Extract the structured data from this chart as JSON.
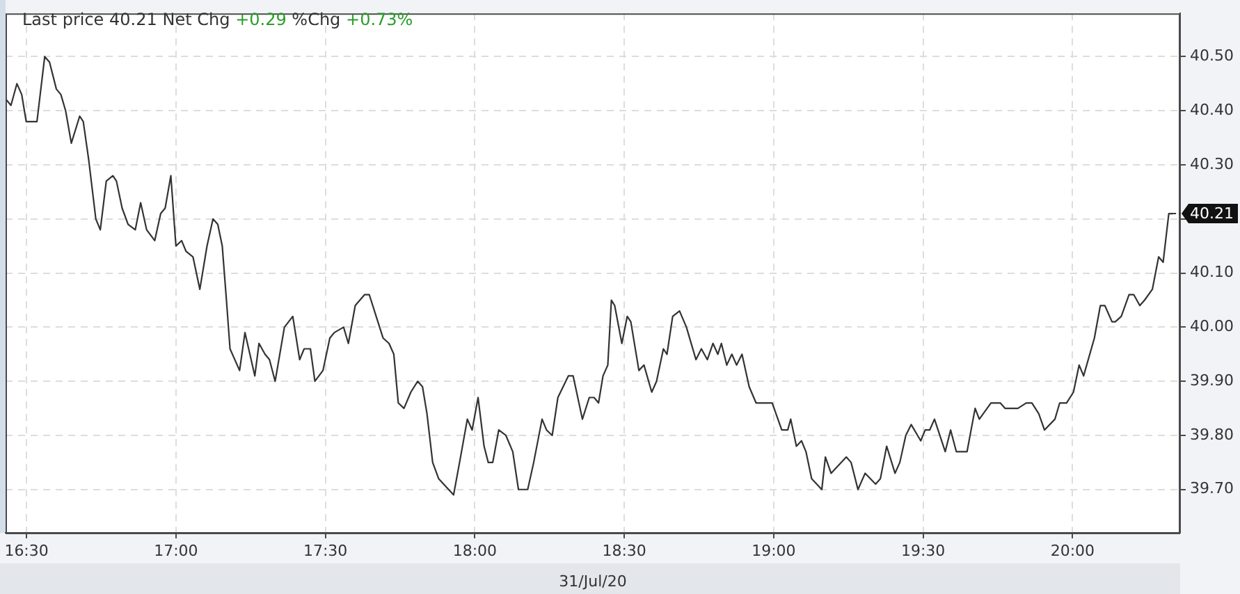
{
  "chart_data": {
    "type": "line",
    "title": "Last price 40.21 Net Chg +0.29 %Chg +0.73%",
    "xlabel": "31/Jul/20",
    "x": [
      16.433,
      16.448,
      16.468,
      16.484,
      16.499,
      16.535,
      16.561,
      16.577,
      16.6,
      16.615,
      16.631,
      16.65,
      16.678,
      16.69,
      16.708,
      16.732,
      16.747,
      16.767,
      16.789,
      16.801,
      16.82,
      16.84,
      16.864,
      16.882,
      16.902,
      16.929,
      16.949,
      16.964,
      16.983,
      17.0,
      17.019,
      17.034,
      17.057,
      17.08,
      17.104,
      17.124,
      17.14,
      17.155,
      17.169,
      17.181,
      17.213,
      17.231,
      17.264,
      17.278,
      17.298,
      17.313,
      17.332,
      17.363,
      17.391,
      17.414,
      17.429,
      17.45,
      17.465,
      17.492,
      17.515,
      17.53,
      17.561,
      17.577,
      17.6,
      17.631,
      17.647,
      17.67,
      17.693,
      17.713,
      17.729,
      17.744,
      17.763,
      17.786,
      17.809,
      17.825,
      17.84,
      17.859,
      17.879,
      17.929,
      17.949,
      17.975,
      17.991,
      18.011,
      18.031,
      18.045,
      18.06,
      18.08,
      18.104,
      18.127,
      18.146,
      18.177,
      18.197,
      18.225,
      18.24,
      18.259,
      18.278,
      18.313,
      18.329,
      18.36,
      18.383,
      18.399,
      18.414,
      18.429,
      18.445,
      18.457,
      18.468,
      18.492,
      18.51,
      18.522,
      18.549,
      18.566,
      18.592,
      18.608,
      18.631,
      18.643,
      18.662,
      18.685,
      18.708,
      18.74,
      18.758,
      18.778,
      18.797,
      18.813,
      18.825,
      18.843,
      18.86,
      18.876,
      18.894,
      18.918,
      18.941,
      18.995,
      19.027,
      19.047,
      19.057,
      19.076,
      19.093,
      19.108,
      19.127,
      19.161,
      19.173,
      19.192,
      19.243,
      19.259,
      19.282,
      19.306,
      19.341,
      19.357,
      19.378,
      19.406,
      19.422,
      19.442,
      19.46,
      19.492,
      19.507,
      19.522,
      19.538,
      19.574,
      19.592,
      19.611,
      19.647,
      19.674,
      19.688,
      19.727,
      19.758,
      19.774,
      19.817,
      19.845,
      19.864,
      19.887,
      19.906,
      19.941,
      19.957,
      19.98,
      20.003,
      20.022,
      20.037,
      20.073,
      20.093,
      20.108,
      20.132,
      20.143,
      20.163,
      20.189,
      20.205,
      20.225,
      20.241,
      20.267,
      20.288,
      20.303,
      20.322,
      20.337
    ],
    "values": [
      40.42,
      40.41,
      40.45,
      40.43,
      40.38,
      40.38,
      40.5,
      40.49,
      40.44,
      40.43,
      40.4,
      40.34,
      40.39,
      40.38,
      40.31,
      40.2,
      40.18,
      40.27,
      40.28,
      40.27,
      40.22,
      40.19,
      40.18,
      40.23,
      40.18,
      40.16,
      40.21,
      40.22,
      40.28,
      40.15,
      40.16,
      40.14,
      40.13,
      40.07,
      40.15,
      40.2,
      40.19,
      40.15,
      40.05,
      39.96,
      39.92,
      39.99,
      39.91,
      39.97,
      39.95,
      39.94,
      39.9,
      40.0,
      40.02,
      39.94,
      39.96,
      39.96,
      39.9,
      39.92,
      39.98,
      39.99,
      40.0,
      39.97,
      40.04,
      40.06,
      40.06,
      40.02,
      39.98,
      39.97,
      39.95,
      39.86,
      39.85,
      39.88,
      39.9,
      39.89,
      39.84,
      39.75,
      39.72,
      39.69,
      39.75,
      39.83,
      39.81,
      39.87,
      39.78,
      39.75,
      39.75,
      39.81,
      39.8,
      39.77,
      39.7,
      39.7,
      39.75,
      39.83,
      39.81,
      39.8,
      39.87,
      39.91,
      39.91,
      39.83,
      39.87,
      39.87,
      39.86,
      39.91,
      39.93,
      40.05,
      40.04,
      39.97,
      40.02,
      40.01,
      39.92,
      39.93,
      39.88,
      39.9,
      39.96,
      39.95,
      40.02,
      40.03,
      40.0,
      39.94,
      39.96,
      39.94,
      39.97,
      39.95,
      39.97,
      39.93,
      39.95,
      39.93,
      39.95,
      39.89,
      39.86,
      39.86,
      39.81,
      39.81,
      39.83,
      39.78,
      39.79,
      39.77,
      39.72,
      39.7,
      39.76,
      39.73,
      39.76,
      39.75,
      39.7,
      39.73,
      39.71,
      39.72,
      39.78,
      39.73,
      39.75,
      39.8,
      39.82,
      39.79,
      39.81,
      39.81,
      39.83,
      39.77,
      39.81,
      39.77,
      39.77,
      39.85,
      39.83,
      39.86,
      39.86,
      39.85,
      39.85,
      39.86,
      39.86,
      39.84,
      39.81,
      39.83,
      39.86,
      39.86,
      39.88,
      39.93,
      39.91,
      39.98,
      40.04,
      40.04,
      40.01,
      40.01,
      40.02,
      40.06,
      40.06,
      40.04,
      40.05,
      40.07,
      40.13,
      40.12,
      40.21,
      40.21
    ],
    "color": "#333333",
    "marker": "none",
    "line_style": "solid",
    "xlim": [
      16.43,
      20.36
    ],
    "xticks": [
      {
        "value": 16.5,
        "label": "16:30"
      },
      {
        "value": 17,
        "label": "17:00"
      },
      {
        "value": 17.5,
        "label": "17:30"
      },
      {
        "value": 18,
        "label": "18:00"
      },
      {
        "value": 18.5,
        "label": "18:30"
      },
      {
        "value": 19,
        "label": "19:00"
      },
      {
        "value": 19.5,
        "label": "19:30"
      },
      {
        "value": 20,
        "label": "20:00"
      }
    ],
    "ylim": [
      39.62,
      40.58
    ],
    "yticks": [
      {
        "value": 39.7,
        "label": "39.70"
      },
      {
        "value": 39.8,
        "label": "39.80"
      },
      {
        "value": 39.9,
        "label": "39.90"
      },
      {
        "value": 40,
        "label": "40.00"
      },
      {
        "value": 40.1,
        "label": "40.10"
      },
      {
        "value": 40.2,
        "label": null
      },
      {
        "value": 40.3,
        "label": "40.30"
      },
      {
        "value": 40.4,
        "label": "40.40"
      },
      {
        "value": 40.5,
        "label": "40.50"
      }
    ],
    "annotations": [
      {
        "text": "40.21",
        "x": 20.337,
        "y": 40.21
      }
    ],
    "grid": true,
    "legend": false
  }
}
